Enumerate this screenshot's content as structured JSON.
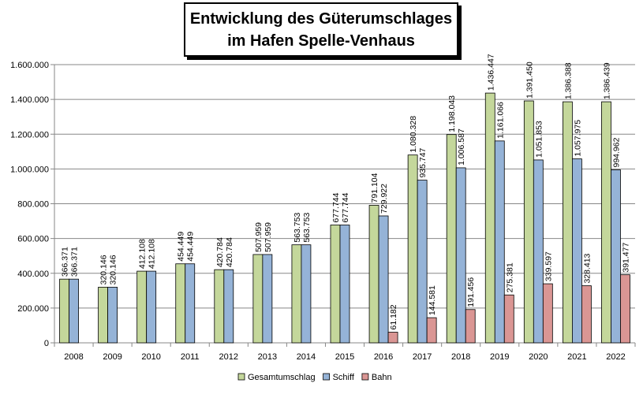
{
  "chart_data": {
    "type": "bar",
    "title_lines": [
      "Entwicklung des Güterumschlages",
      "im Hafen Spelle-Venhaus"
    ],
    "xlabel": "",
    "ylabel": "",
    "ylim": [
      0,
      1600000
    ],
    "yticks": [
      "0",
      "200.000",
      "400.000",
      "600.000",
      "800.000",
      "1.000.000",
      "1.200.000",
      "1.400.000",
      "1.600.000"
    ],
    "grid": true,
    "legend_position": "bottom",
    "categories": [
      "2008",
      "2009",
      "2010",
      "2011",
      "2012",
      "2013",
      "2014",
      "2015",
      "2016",
      "2017",
      "2018",
      "2019",
      "2020",
      "2021",
      "2022"
    ],
    "series": [
      {
        "name": "Gesamtumschlag",
        "color": "#c4d79b",
        "values": [
          366371,
          320146,
          412108,
          454449,
          420784,
          507959,
          563753,
          677744,
          791104,
          1080328,
          1198043,
          1436447,
          1391450,
          1386388,
          1386439
        ],
        "labels": [
          "366.371",
          "320.146",
          "412.108",
          "454.449",
          "420.784",
          "507.959",
          "563.753",
          "677.744",
          "791.104",
          "1.080.328",
          "1.198.043",
          "1.436.447",
          "1.391.450",
          "1.386.388",
          "1.386.439"
        ]
      },
      {
        "name": "Schiff",
        "color": "#95b3d7",
        "values": [
          366371,
          320146,
          412108,
          454449,
          420784,
          507959,
          563753,
          677744,
          729922,
          935747,
          1006587,
          1161066,
          1051853,
          1057975,
          994962
        ],
        "labels": [
          "366.371",
          "320.146",
          "412.108",
          "454.449",
          "420.784",
          "507.959",
          "563.753",
          "677.744",
          "729.922",
          "935.747",
          "1.006.587",
          "1.161.066",
          "1.051.853",
          "1.057.975",
          "994.962"
        ]
      },
      {
        "name": "Bahn",
        "color": "#da9694",
        "values": [
          null,
          null,
          null,
          null,
          null,
          null,
          null,
          null,
          61182,
          144581,
          191456,
          275381,
          339597,
          328413,
          391477
        ],
        "labels": [
          null,
          null,
          null,
          null,
          null,
          null,
          null,
          null,
          "61.182",
          "144.581",
          "191.456",
          "275.381",
          "339.597",
          "328.413",
          "391.477"
        ]
      }
    ]
  }
}
